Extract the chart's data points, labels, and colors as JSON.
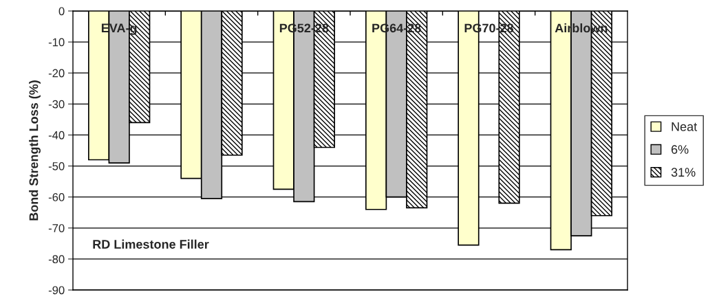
{
  "chart_data": {
    "type": "bar",
    "ylabel": "Bond Strength Loss (%)",
    "categories": [
      "EVA-g",
      null,
      "PG52-28",
      "PG64-28",
      "PG70-28",
      "Airblown"
    ],
    "series": [
      {
        "name": "Neat",
        "color": "#ffffcc",
        "values": [
          -48,
          -54,
          -57.5,
          -64,
          -75.5,
          -77
        ]
      },
      {
        "name": "6%",
        "color": "#c0c0c0",
        "values": [
          -49,
          -60.5,
          -61.5,
          -60,
          null,
          -72.5
        ]
      },
      {
        "name": "31%",
        "color": "#000000",
        "values": [
          -36,
          -46.5,
          -44,
          -63.5,
          -62,
          -66
        ]
      }
    ],
    "ylim": [
      -90,
      0
    ],
    "yticks": [
      -90,
      -80,
      -70,
      -60,
      -50,
      -40,
      -30,
      -20,
      -10,
      0
    ],
    "grid": "y",
    "legend": "right",
    "annotations": [
      "RD Limestone Filler"
    ]
  }
}
